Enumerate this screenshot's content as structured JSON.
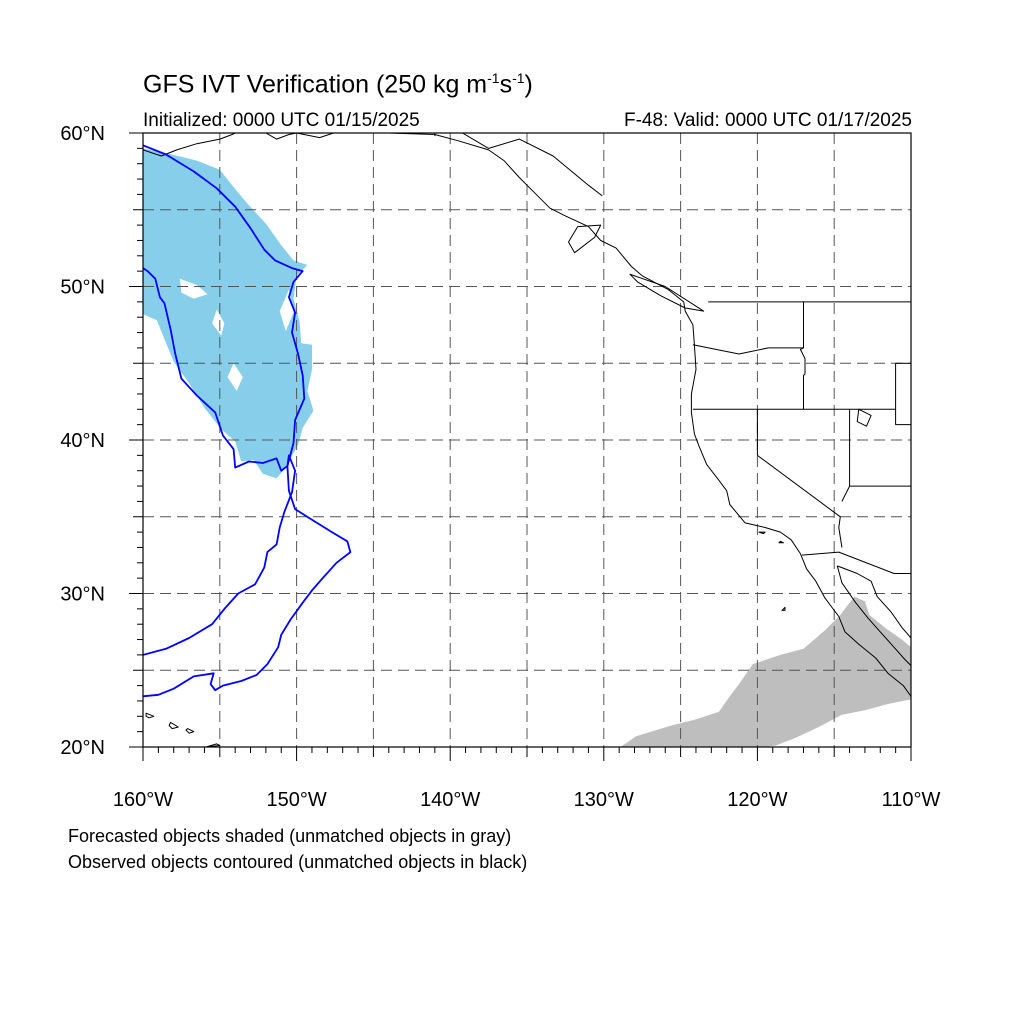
{
  "title": {
    "prefix": "GFS IVT Verification (250 kg m",
    "exp1": "-1",
    "mid": "s",
    "exp2": "-1",
    "suffix": ")"
  },
  "initialized": "Initialized: 0000 UTC 01/15/2025",
  "valid": "F-48: Valid: 0000 UTC 01/17/2025",
  "captions": [
    "Forecasted objects shaded (unmatched objects in gray)",
    "Observed objects contoured (unmatched objects in black)"
  ],
  "map": {
    "lon_range": [
      -160,
      -110
    ],
    "lat_range": [
      20,
      60
    ],
    "lon_ticks": [
      {
        "value": -160,
        "label": "160°W"
      },
      {
        "value": -150,
        "label": "150°W"
      },
      {
        "value": -140,
        "label": "140°W"
      },
      {
        "value": -130,
        "label": "130°W"
      },
      {
        "value": -120,
        "label": "120°W"
      },
      {
        "value": -110,
        "label": "110°W"
      }
    ],
    "lat_ticks": [
      {
        "value": 60,
        "label": "60°N"
      },
      {
        "value": 50,
        "label": "50°N"
      },
      {
        "value": 40,
        "label": "40°N"
      },
      {
        "value": 30,
        "label": "30°N"
      },
      {
        "value": 20,
        "label": "20°N"
      }
    ],
    "grid_lons": [
      -155,
      -150,
      -145,
      -140,
      -135,
      -130,
      -125,
      -120,
      -115
    ],
    "grid_lats": [
      25,
      30,
      35,
      40,
      45,
      50,
      55
    ],
    "colors": {
      "matched_forecast": "#87ceeb",
      "unmatched_forecast": "#bebebe",
      "observed_contour": "#0000ff",
      "coastline": "#000000",
      "grid": "#555555"
    },
    "forecast_matched_object": [
      [
        -160,
        59
      ],
      [
        -158.5,
        58.7
      ],
      [
        -156.5,
        58.2
      ],
      [
        -155,
        57.6
      ],
      [
        -154.2,
        56.6
      ],
      [
        -153.2,
        55.4
      ],
      [
        -152,
        54.1
      ],
      [
        -151,
        52.7
      ],
      [
        -150.2,
        51.7
      ],
      [
        -149.3,
        51.4
      ],
      [
        -150,
        50.7
      ],
      [
        -150.2,
        49.2
      ],
      [
        -149.8,
        47.7
      ],
      [
        -149.7,
        46.3
      ],
      [
        -149,
        46.2
      ],
      [
        -149,
        44.6
      ],
      [
        -149.3,
        43.2
      ],
      [
        -148.9,
        41.9
      ],
      [
        -149.6,
        40.8
      ],
      [
        -149.9,
        39.7
      ],
      [
        -150.7,
        38.2
      ],
      [
        -151.3,
        37.5
      ],
      [
        -152.2,
        37.8
      ],
      [
        -152.8,
        38.7
      ],
      [
        -153.6,
        38.6
      ],
      [
        -154,
        39.9
      ],
      [
        -154.9,
        40.7
      ],
      [
        -156,
        42.1
      ],
      [
        -157,
        43.7
      ],
      [
        -158,
        45.1
      ],
      [
        -159.1,
        47.8
      ],
      [
        -160,
        48.2
      ]
    ],
    "forecast_matched_holes": [
      [
        [
          -157.6,
          50.5
        ],
        [
          -156.5,
          50.1
        ],
        [
          -155.8,
          49.5
        ],
        [
          -156.7,
          49.2
        ],
        [
          -157.5,
          49.6
        ]
      ],
      [
        [
          -150.5,
          49.8
        ],
        [
          -150.2,
          48.3
        ],
        [
          -150.7,
          47.1
        ],
        [
          -151.1,
          48.4
        ]
      ],
      [
        [
          -155.2,
          48.5
        ],
        [
          -154.7,
          47.6
        ],
        [
          -154.9,
          46.8
        ],
        [
          -155.5,
          47.6
        ]
      ],
      [
        [
          -154.1,
          45.0
        ],
        [
          -153.5,
          44.1
        ],
        [
          -153.9,
          43.2
        ],
        [
          -154.5,
          44.1
        ]
      ]
    ],
    "forecast_unmatched_object": [
      [
        -128.9,
        20
      ],
      [
        -127.9,
        20.7
      ],
      [
        -125.6,
        21.4
      ],
      [
        -124,
        21.8
      ],
      [
        -122.5,
        22.3
      ],
      [
        -121.8,
        23.3
      ],
      [
        -121.2,
        24.1
      ],
      [
        -120.3,
        25.4
      ],
      [
        -118.5,
        26.0
      ],
      [
        -117,
        26.4
      ],
      [
        -115.6,
        27.6
      ],
      [
        -114.6,
        28.6
      ],
      [
        -113.7,
        29.8
      ],
      [
        -113,
        29.5
      ],
      [
        -112.7,
        28.6
      ],
      [
        -111.6,
        27.7
      ],
      [
        -110.6,
        27.0
      ],
      [
        -110,
        26.5
      ],
      [
        -110,
        23.1
      ],
      [
        -111.5,
        22.8
      ],
      [
        -113,
        22.4
      ],
      [
        -114.5,
        22.1
      ],
      [
        -116,
        21.3
      ],
      [
        -117.5,
        20.6
      ],
      [
        -118.8,
        20.1
      ],
      [
        -119.5,
        20
      ]
    ],
    "observed_contour": [
      [
        -160,
        59.2
      ],
      [
        -158.5,
        58.6
      ],
      [
        -156.7,
        57.5
      ],
      [
        -155.2,
        56.4
      ],
      [
        -154,
        55.2
      ],
      [
        -153,
        53.8
      ],
      [
        -152.1,
        52.4
      ],
      [
        -151.4,
        51.7
      ],
      [
        -150.3,
        51.2
      ],
      [
        -149.6,
        51
      ],
      [
        -150.2,
        50.3
      ],
      [
        -150.5,
        49.3
      ],
      [
        -150.1,
        48.3
      ],
      [
        -150.3,
        47
      ],
      [
        -149.9,
        45.6
      ],
      [
        -149.6,
        44.2
      ],
      [
        -149.5,
        42.7
      ],
      [
        -150.1,
        41.3
      ],
      [
        -150.2,
        39.8
      ],
      [
        -150.6,
        38.3
      ],
      [
        -150.5,
        36.7
      ],
      [
        -150.1,
        35.5
      ],
      [
        -149,
        34.8
      ],
      [
        -147.7,
        34.0
      ],
      [
        -146.7,
        33.4
      ],
      [
        -146.5,
        32.7
      ],
      [
        -147.4,
        32.0
      ],
      [
        -148.3,
        31.0
      ],
      [
        -149.0,
        30.2
      ],
      [
        -149.6,
        29.4
      ],
      [
        -150.4,
        28.3
      ],
      [
        -151,
        27.3
      ],
      [
        -151.2,
        26.5
      ],
      [
        -151.9,
        25.4
      ],
      [
        -152.6,
        24.7
      ],
      [
        -153.6,
        24.3
      ],
      [
        -154.8,
        24.0
      ],
      [
        -155.3,
        23.7
      ],
      [
        -155.6,
        24.1
      ],
      [
        -155.4,
        24.8
      ],
      [
        -156.7,
        24.6
      ],
      [
        -158,
        23.8
      ],
      [
        -159,
        23.4
      ],
      [
        -160,
        23.3
      ]
    ],
    "observed_contour_b": [
      [
        -160,
        26.0
      ],
      [
        -158.5,
        26.4
      ],
      [
        -157,
        27.1
      ],
      [
        -155.5,
        28.0
      ],
      [
        -154.7,
        29.0
      ],
      [
        -153.8,
        30.0
      ],
      [
        -152.7,
        30.6
      ],
      [
        -152.1,
        31.7
      ],
      [
        -151.9,
        32.7
      ],
      [
        -151.3,
        33.2
      ],
      [
        -151.1,
        34.3
      ],
      [
        -150.8,
        35.3
      ],
      [
        -150.3,
        36.6
      ],
      [
        -150.1,
        38.0
      ],
      [
        -150.5,
        39.0
      ],
      [
        -150.6,
        38.3
      ],
      [
        -151,
        38
      ],
      [
        -151.3,
        38.8
      ],
      [
        -152.2,
        38.5
      ],
      [
        -153.1,
        38.6
      ],
      [
        -154,
        38.2
      ],
      [
        -154.1,
        39.4
      ],
      [
        -154.8,
        40.3
      ],
      [
        -155.3,
        41.8
      ],
      [
        -156.5,
        42.9
      ],
      [
        -157.5,
        44.0
      ],
      [
        -157.9,
        45.6
      ],
      [
        -158.2,
        47.2
      ],
      [
        -158.6,
        48.9
      ],
      [
        -158.9,
        49.3
      ],
      [
        -159.2,
        50.5
      ],
      [
        -159.7,
        51.0
      ],
      [
        -160,
        51.2
      ]
    ],
    "coastline_na": [
      [
        -152,
        60
      ],
      [
        -151.3,
        59.6
      ],
      [
        -150.5,
        59.9
      ],
      [
        -150,
        60
      ],
      [
        -148.5,
        59.7
      ],
      [
        -147.6,
        60
      ],
      [
        -146,
        60
      ],
      [
        -144,
        60
      ],
      [
        -141,
        59.9
      ],
      [
        -139.5,
        59.5
      ],
      [
        -137.5,
        58.9
      ],
      [
        -136.5,
        58.2
      ],
      [
        -135.5,
        57.1
      ],
      [
        -134.6,
        56.2
      ],
      [
        -133.5,
        55.1
      ],
      [
        -132.5,
        54.6
      ],
      [
        -131,
        53.9
      ],
      [
        -130.2,
        53.0
      ],
      [
        -129.2,
        52.5
      ],
      [
        -128.2,
        51.3
      ],
      [
        -127.5,
        50.7
      ],
      [
        -125.8,
        49.8
      ],
      [
        -124.8,
        49.0
      ],
      [
        -124.7,
        48.4
      ],
      [
        -124.2,
        47.5
      ],
      [
        -124.1,
        46.2
      ],
      [
        -124,
        44.6
      ],
      [
        -124.3,
        43.0
      ],
      [
        -124.3,
        41.8
      ],
      [
        -124.1,
        40.4
      ],
      [
        -123.8,
        39.6
      ],
      [
        -123.3,
        38.4
      ],
      [
        -122.6,
        37.5
      ],
      [
        -122,
        36.7
      ],
      [
        -121.8,
        35.8
      ],
      [
        -120.8,
        34.6
      ],
      [
        -119.5,
        34.3
      ],
      [
        -118.5,
        34.0
      ],
      [
        -117.8,
        33.5
      ],
      [
        -117.2,
        32.6
      ],
      [
        -116.8,
        31.6
      ],
      [
        -116.2,
        30.8
      ],
      [
        -115.6,
        29.7
      ],
      [
        -114.7,
        28.5
      ],
      [
        -114.3,
        27.5
      ],
      [
        -113.4,
        26.7
      ],
      [
        -112.3,
        25.8
      ],
      [
        -111.5,
        24.8
      ],
      [
        -110.5,
        24.0
      ],
      [
        -110,
        23.3
      ]
    ],
    "coastline_gulf": [
      [
        -114.8,
        31.8
      ],
      [
        -114.5,
        30.7
      ],
      [
        -113.6,
        29.4
      ],
      [
        -112.8,
        28.4
      ],
      [
        -112.0,
        27.5
      ],
      [
        -111.2,
        26.6
      ],
      [
        -110.4,
        25.7
      ],
      [
        -110,
        25.3
      ]
    ],
    "coastline_mainland_mx": [
      [
        -114.8,
        31.8
      ],
      [
        -113.5,
        31.3
      ],
      [
        -112.6,
        30.8
      ],
      [
        -112.2,
        29.8
      ],
      [
        -111.3,
        28.8
      ],
      [
        -110.6,
        27.8
      ],
      [
        -110,
        27.1
      ]
    ],
    "coastline_ak": [
      [
        -160,
        58.9
      ],
      [
        -158.8,
        58.5
      ],
      [
        -157.8,
        58.9
      ],
      [
        -156.5,
        59.3
      ],
      [
        -155,
        59.6
      ],
      [
        -154.2,
        59.9
      ],
      [
        -154,
        60
      ]
    ],
    "islands": [
      [
        [
          -155.9,
          20
        ],
        [
          -155.2,
          20.2
        ],
        [
          -155,
          20.1
        ]
      ],
      [
        [
          -157.1,
          21.2
        ],
        [
          -156.7,
          21.0
        ],
        [
          -157.0,
          20.9
        ],
        [
          -157.2,
          21.1
        ]
      ],
      [
        [
          -158.2,
          21.6
        ],
        [
          -157.7,
          21.3
        ],
        [
          -158.1,
          21.2
        ],
        [
          -158.3,
          21.4
        ]
      ],
      [
        [
          -159.8,
          22.2
        ],
        [
          -159.3,
          22.0
        ],
        [
          -159.6,
          21.9
        ],
        [
          -159.8,
          22.0
        ]
      ],
      [
        [
          -130.2,
          54.0
        ],
        [
          -130.6,
          53.2
        ],
        [
          -131.9,
          52.2
        ],
        [
          -132.3,
          52.9
        ],
        [
          -131.7,
          53.9
        ]
      ],
      [
        [
          -128.3,
          50.8
        ],
        [
          -126,
          50.0
        ],
        [
          -123.5,
          48.4
        ],
        [
          -124.7,
          48.6
        ],
        [
          -126.3,
          49.4
        ],
        [
          -127.8,
          50.3
        ]
      ],
      [
        [
          -119.5,
          34.0
        ],
        [
          -119.9,
          34.0
        ],
        [
          -119.6,
          33.9
        ]
      ],
      [
        [
          -118.5,
          33.4
        ],
        [
          -118.3,
          33.3
        ],
        [
          -118.6,
          33.3
        ]
      ],
      [
        [
          -118.2,
          29.1
        ],
        [
          -118.4,
          28.9
        ],
        [
          -118.2,
          28.9
        ]
      ],
      [
        [
          -113.4,
          42.0
        ],
        [
          -112.6,
          41.6
        ],
        [
          -112.9,
          40.9
        ],
        [
          -113.5,
          41.2
        ]
      ]
    ],
    "borders": [
      [
        [
          -123.2,
          49.0
        ],
        [
          -110,
          49.0
        ]
      ],
      [
        [
          -117,
          49.0
        ],
        [
          -117,
          46.0
        ],
        [
          -117.2,
          45.9
        ],
        [
          -116.9,
          45.3
        ],
        [
          -116.9,
          44.3
        ],
        [
          -117.0,
          44.2
        ],
        [
          -117.0,
          42
        ]
      ],
      [
        [
          -124.2,
          46.2
        ],
        [
          -122.7,
          45.9
        ],
        [
          -121.2,
          45.6
        ],
        [
          -119.3,
          46.0
        ],
        [
          -117,
          46.0
        ]
      ],
      [
        [
          -124.2,
          42.0
        ],
        [
          -111.0,
          42.0
        ]
      ],
      [
        [
          -120.0,
          42.0
        ],
        [
          -120.0,
          39.0
        ],
        [
          -114.6,
          35.0
        ],
        [
          -114.7,
          34.3
        ],
        [
          -114.5,
          33.0
        ]
      ],
      [
        [
          -114.0,
          42.0
        ],
        [
          -114.0,
          37.0
        ],
        [
          -114.5,
          36.0
        ]
      ],
      [
        [
          -114.0,
          37.0
        ],
        [
          -110,
          37.0
        ]
      ],
      [
        [
          -111.0,
          45.0
        ],
        [
          -110,
          45.0
        ]
      ],
      [
        [
          -111.0,
          45.0
        ],
        [
          -111.0,
          41.0
        ],
        [
          -110,
          41.0
        ]
      ],
      [
        [
          -117.1,
          32.5
        ],
        [
          -114.7,
          32.7
        ],
        [
          -111.1,
          31.3
        ],
        [
          -110,
          31.3
        ]
      ],
      [
        [
          -141,
          60
        ],
        [
          -141,
          59.8
        ]
      ],
      [
        [
          -130.1,
          55.9
        ],
        [
          -131,
          56.6
        ],
        [
          -133.3,
          58.5
        ],
        [
          -135.5,
          59.6
        ],
        [
          -137.5,
          59.0
        ],
        [
          -139.2,
          60
        ]
      ]
    ]
  }
}
